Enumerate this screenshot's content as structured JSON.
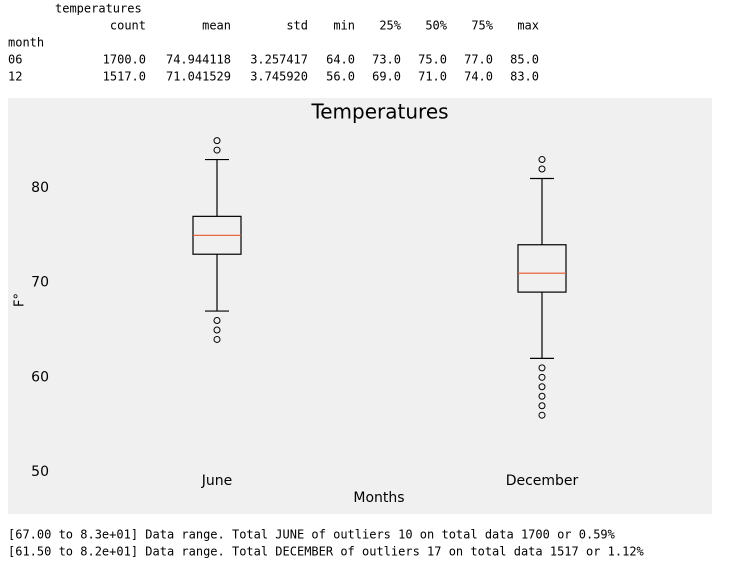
{
  "table": {
    "columns_name": "temperatures",
    "columns": [
      "count",
      "mean",
      "std",
      "min",
      "25%",
      "50%",
      "75%",
      "max"
    ],
    "index_name": "month",
    "rows": [
      [
        "06",
        "1700.0",
        "74.944118",
        "3.257417",
        "64.0",
        "73.0",
        "75.0",
        "77.0",
        "85.0"
      ],
      [
        "12",
        "1517.0",
        "71.041529",
        "3.745920",
        "56.0",
        "69.0",
        "71.0",
        "74.0",
        "83.0"
      ]
    ]
  },
  "chart_data": {
    "type": "box",
    "title": "Temperatures",
    "x_label": "Months",
    "y_label": "F°",
    "categories": [
      "June",
      "December"
    ],
    "boxes": [
      {
        "whislo": 67,
        "q1": 73,
        "med": 75,
        "q3": 77,
        "whishi": 83,
        "fliers": [
          85,
          84,
          66,
          65,
          64
        ]
      },
      {
        "whislo": 62,
        "q1": 69,
        "med": 71,
        "q3": 74,
        "whishi": 81,
        "fliers": [
          83,
          82,
          61,
          60,
          59,
          58,
          57,
          56
        ]
      }
    ],
    "box_color": "#000000",
    "median_color": "#e8572a",
    "background": "#f0f0f0",
    "ylim": [
      50,
      89.5
    ],
    "yticks": [
      50,
      60,
      70,
      80
    ]
  },
  "notes": [
    "[67.00 to 8.3e+01] Data range. Total JUNE of outliers 10 on total data 1700 or 0.59%",
    "[61.50 to 8.2e+01] Data range. Total DECEMBER of outliers 17 on total data 1517 or 1.12%"
  ]
}
